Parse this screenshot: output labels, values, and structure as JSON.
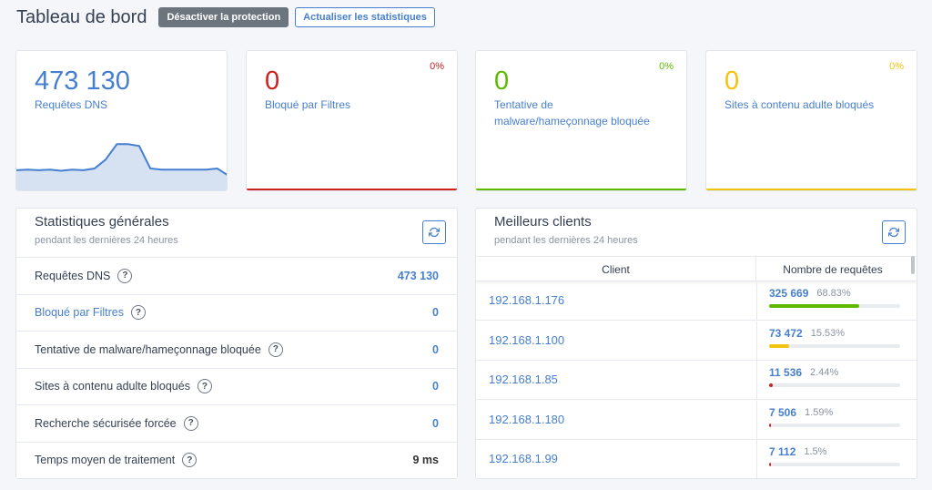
{
  "header": {
    "title": "Tableau de bord",
    "disable_protection": "Désactiver la protection",
    "refresh_stats": "Actualiser les statistiques"
  },
  "stat_cards": [
    {
      "value": "473130",
      "value_display": "473 130",
      "label": "Requêtes DNS",
      "color": "#467fcf"
    },
    {
      "value": "0",
      "label": "Bloqué par Filtres",
      "percent": "0%",
      "color": "#cd201f"
    },
    {
      "value": "0",
      "label": "Tentative de malware/hameçonnage bloquée",
      "percent": "0%",
      "color": "#5eba00"
    },
    {
      "value": "0",
      "label": "Sites à contenu adulte bloqués",
      "percent": "0%",
      "color": "#f1c40f"
    }
  ],
  "dns_sparkline": {
    "values": [
      34,
      35,
      34,
      35,
      33,
      35,
      34,
      37,
      52,
      78,
      78,
      75,
      37,
      35,
      35,
      35,
      35,
      35,
      37,
      25
    ]
  },
  "general": {
    "title": "Statistiques générales",
    "subtitle": "pendant les dernières 24 heures",
    "rows": [
      {
        "label": "Requêtes DNS",
        "value": "473 130",
        "link": false,
        "value_color": "#467fcf"
      },
      {
        "label": "Bloqué par Filtres",
        "value": "0",
        "link": true,
        "value_color": "#467fcf"
      },
      {
        "label": "Tentative de malware/hameçonnage bloquée",
        "value": "0",
        "link": false,
        "value_color": "#467fcf"
      },
      {
        "label": "Sites à contenu adulte bloqués",
        "value": "0",
        "link": false,
        "value_color": "#467fcf"
      },
      {
        "label": "Recherche sécurisée forcée",
        "value": "0",
        "link": false,
        "value_color": "#467fcf"
      },
      {
        "label": "Temps moyen de traitement",
        "value": "9 ms",
        "link": false,
        "value_color": "#333333"
      }
    ]
  },
  "clients": {
    "title": "Meilleurs clients",
    "subtitle": "pendant les dernières 24 heures",
    "col_client": "Client",
    "col_requests": "Nombre de requêtes",
    "rows": [
      {
        "ip": "192.168.1.176",
        "count": "325 669",
        "percent": "68.83%",
        "share": 0.6883,
        "color": "#5eba00"
      },
      {
        "ip": "192.168.1.100",
        "count": "73 472",
        "percent": "15.53%",
        "share": 0.1553,
        "color": "#f1c40f"
      },
      {
        "ip": "192.168.1.85",
        "count": "11 536",
        "percent": "2.44%",
        "share": 0.0244,
        "color": "#cd201f"
      },
      {
        "ip": "192.168.1.180",
        "count": "7 506",
        "percent": "1.59%",
        "share": 0.0159,
        "color": "#cd201f"
      },
      {
        "ip": "192.168.1.99",
        "count": "7 112",
        "percent": "1.5%",
        "share": 0.015,
        "color": "#cd201f"
      }
    ]
  },
  "icons": {
    "refresh": "refresh-icon",
    "help": "help-icon"
  }
}
